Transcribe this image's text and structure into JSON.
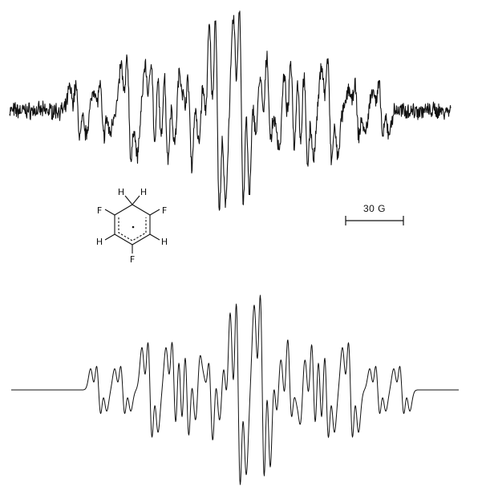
{
  "scale_bar": {
    "label": "30 G"
  },
  "molecule": {
    "atoms": [
      {
        "id": "F-left",
        "symbol": "F"
      },
      {
        "id": "F-right",
        "symbol": "F"
      },
      {
        "id": "F-bottom",
        "symbol": "F"
      },
      {
        "id": "H-ch2-left",
        "symbol": "H"
      },
      {
        "id": "H-ch2-right",
        "symbol": "H"
      },
      {
        "id": "H-left",
        "symbol": "H"
      },
      {
        "id": "H-right",
        "symbol": "H"
      }
    ]
  },
  "spectra": [
    {
      "id": "experimental",
      "noise": true
    },
    {
      "id": "simulated",
      "noise": false
    }
  ],
  "colors": {
    "ink": "#111111",
    "background": "#ffffff"
  }
}
